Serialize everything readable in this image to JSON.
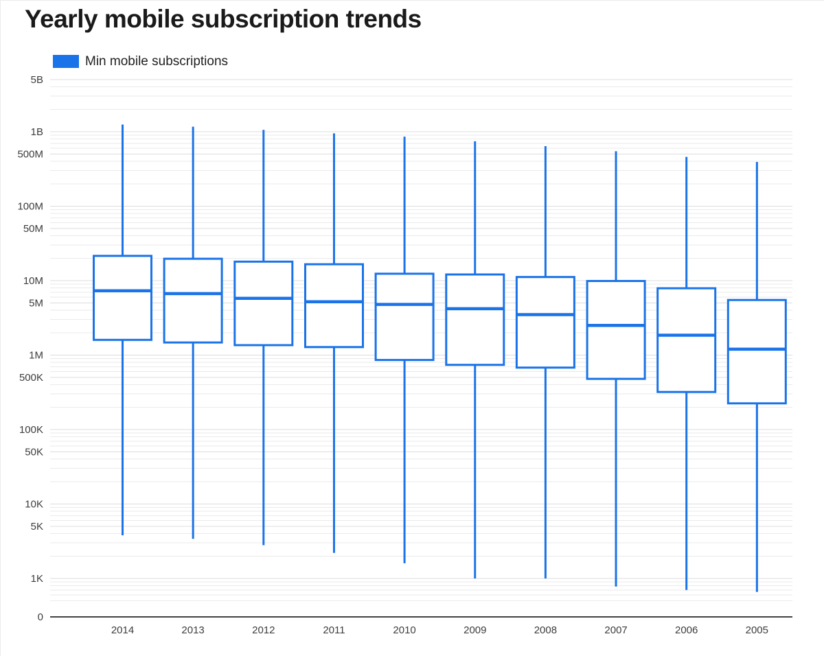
{
  "title": "Yearly mobile subscription trends",
  "legend": {
    "items": [
      {
        "label": "Min mobile subscriptions",
        "color": "#1a73e8"
      }
    ]
  },
  "chart_data": {
    "type": "boxplot",
    "title": "Yearly mobile subscription trends",
    "xlabel": "",
    "ylabel": "",
    "y_scale": "log",
    "grid": true,
    "legend_position": "top-left",
    "categories": [
      "2014",
      "2013",
      "2012",
      "2011",
      "2010",
      "2009",
      "2008",
      "2007",
      "2006",
      "2005"
    ],
    "series": [
      {
        "category": "2014",
        "min": 3800,
        "q1": 1600000,
        "median": 7300000,
        "q3": 21500000,
        "max": 1250000000
      },
      {
        "category": "2013",
        "min": 3400,
        "q1": 1480000,
        "median": 6700000,
        "q3": 19700000,
        "max": 1170000000
      },
      {
        "category": "2012",
        "min": 2800,
        "q1": 1360000,
        "median": 5800000,
        "q3": 18000000,
        "max": 1060000000
      },
      {
        "category": "2011",
        "min": 2200,
        "q1": 1280000,
        "median": 5200000,
        "q3": 16600000,
        "max": 950000000
      },
      {
        "category": "2010",
        "min": 1600,
        "q1": 860000,
        "median": 4800000,
        "q3": 12400000,
        "max": 860000000
      },
      {
        "category": "2009",
        "min": 1000,
        "q1": 740000,
        "median": 4200000,
        "q3": 12100000,
        "max": 745000000
      },
      {
        "category": "2008",
        "min": 1000,
        "q1": 680000,
        "median": 3500000,
        "q3": 11200000,
        "max": 640000000
      },
      {
        "category": "2007",
        "min": 780,
        "q1": 480000,
        "median": 2500000,
        "q3": 9900000,
        "max": 547000000
      },
      {
        "category": "2006",
        "min": 700,
        "q1": 320000,
        "median": 1850000,
        "q3": 7900000,
        "max": 460000000
      },
      {
        "category": "2005",
        "min": 660,
        "q1": 225000,
        "median": 1200000,
        "q3": 5500000,
        "max": 393000000
      }
    ],
    "y_ticks": [
      {
        "label": "5B",
        "value": 5000000000
      },
      {
        "label": "1B",
        "value": 1000000000
      },
      {
        "label": "500M",
        "value": 500000000
      },
      {
        "label": "100M",
        "value": 100000000
      },
      {
        "label": "50M",
        "value": 50000000
      },
      {
        "label": "10M",
        "value": 10000000
      },
      {
        "label": "5M",
        "value": 5000000
      },
      {
        "label": "1M",
        "value": 1000000
      },
      {
        "label": "500K",
        "value": 500000
      },
      {
        "label": "100K",
        "value": 100000
      },
      {
        "label": "50K",
        "value": 50000
      },
      {
        "label": "10K",
        "value": 10000
      },
      {
        "label": "5K",
        "value": 5000
      },
      {
        "label": "1K",
        "value": 1000
      },
      {
        "label": "0",
        "value": 0
      }
    ],
    "colors": {
      "box_stroke": "#1a73e8",
      "box_fill": "#ffffff",
      "grid_major": "#dcdcdc",
      "grid_minor": "#eaeaea",
      "axis_line": "#424242",
      "label_text": "#3c3c3c"
    }
  }
}
